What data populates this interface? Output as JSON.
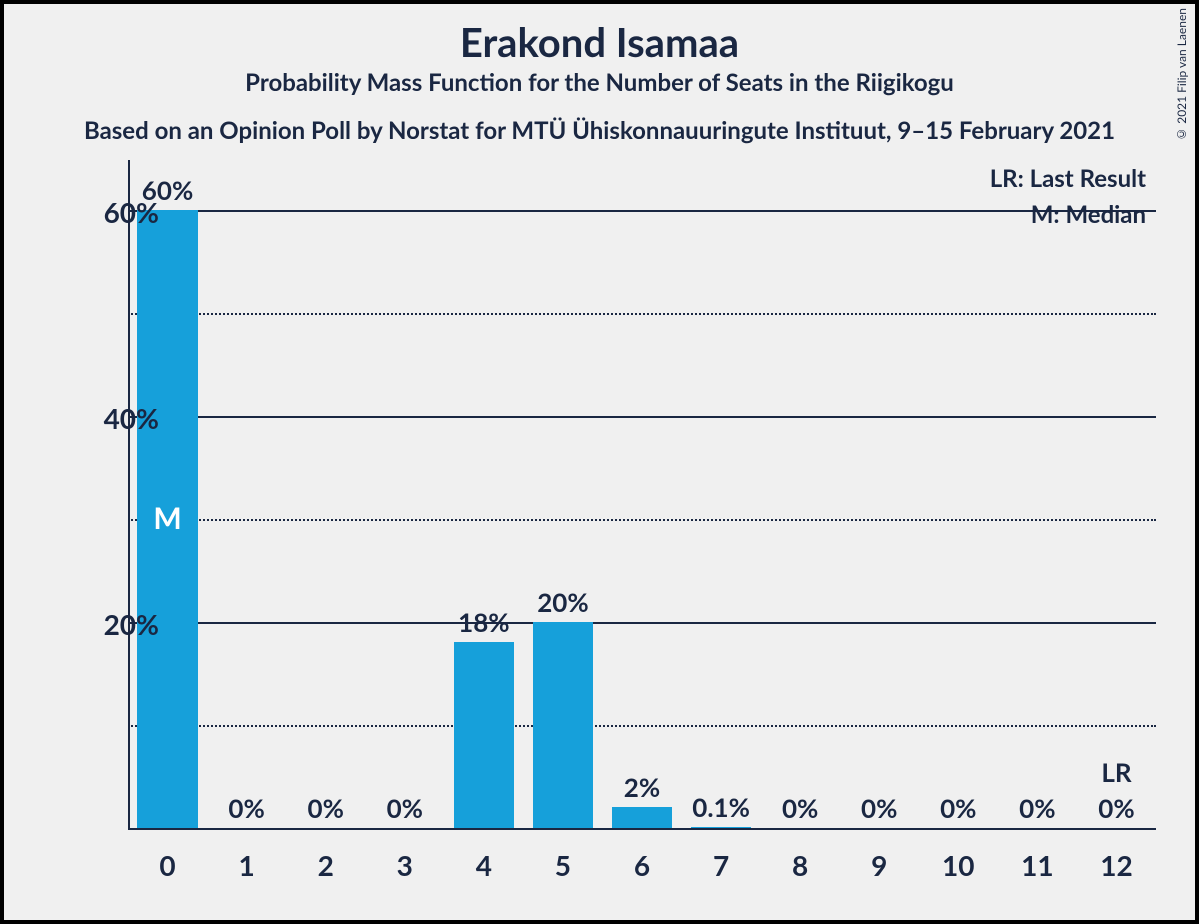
{
  "title": "Erakond Isamaa",
  "subtitle": "Probability Mass Function for the Number of Seats in the Riigikogu",
  "source": "Based on an Opinion Poll by Norstat for MTÜ Ühiskonnauuringute Instituut, 9–15 February 2021",
  "copyright": "© 2021 Filip van Laenen",
  "legend_lr": "LR: Last Result",
  "legend_m": "M: Median",
  "chart": {
    "type": "bar",
    "categories": [
      "0",
      "1",
      "2",
      "3",
      "4",
      "5",
      "6",
      "7",
      "8",
      "9",
      "10",
      "11",
      "12"
    ],
    "values": [
      60,
      0,
      0,
      0,
      18,
      20,
      2,
      0.1,
      0,
      0,
      0,
      0,
      0
    ],
    "value_labels": [
      "60%",
      "0%",
      "0%",
      "0%",
      "18%",
      "20%",
      "2%",
      "0.1%",
      "0%",
      "0%",
      "0%",
      "0%",
      "0%"
    ],
    "bar_color": "#16a0da",
    "background_color": "#f0f0f0",
    "axis_color": "#1a2742",
    "text_color": "#1a2742",
    "ylim_max": 65,
    "y_major_ticks": [
      20,
      40,
      60
    ],
    "y_minor_ticks": [
      10,
      30,
      50
    ],
    "y_tick_labels": [
      "20%",
      "40%",
      "60%"
    ],
    "bar_width_ratio": 0.76,
    "median_index": 0,
    "median_label": "M",
    "lr_index": 12,
    "lr_label": "LR",
    "title_fontsize": 40,
    "subtitle_fontsize": 24,
    "label_fontsize": 28
  }
}
